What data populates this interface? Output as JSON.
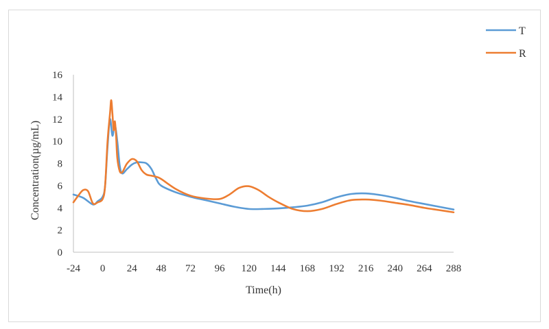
{
  "chart_data": {
    "type": "line",
    "title": "",
    "xlabel": "Time(h)",
    "ylabel": "Concentration(µg/mL)",
    "xlim": [
      -24,
      288
    ],
    "ylim": [
      0,
      16
    ],
    "xticks": [
      "-24",
      "0",
      "24",
      "48",
      "72",
      "96",
      "120",
      "144",
      "168",
      "192",
      "216",
      "240",
      "264",
      "288"
    ],
    "yticks": [
      "0",
      "2",
      "4",
      "6",
      "8",
      "10",
      "12",
      "14",
      "16"
    ],
    "grid": false,
    "legend_position": "top-right",
    "series": [
      {
        "name": "T",
        "color": "#5b9bd5",
        "x": [
          -24,
          -16,
          -8,
          -4,
          0,
          2,
          4,
          6,
          8,
          10,
          12,
          14,
          16,
          20,
          24,
          28,
          32,
          36,
          40,
          44,
          48,
          60,
          72,
          84,
          96,
          108,
          120,
          132,
          144,
          156,
          168,
          180,
          192,
          204,
          216,
          228,
          240,
          252,
          264,
          276,
          288
        ],
        "y": [
          5.2,
          4.9,
          4.3,
          4.6,
          5.0,
          6.0,
          9.5,
          12.0,
          10.5,
          11.5,
          10.0,
          7.8,
          7.1,
          7.5,
          7.9,
          8.1,
          8.1,
          8.0,
          7.5,
          6.6,
          6.0,
          5.4,
          5.0,
          4.7,
          4.4,
          4.1,
          3.9,
          3.9,
          3.95,
          4.05,
          4.2,
          4.5,
          4.95,
          5.25,
          5.3,
          5.15,
          4.9,
          4.6,
          4.35,
          4.1,
          3.85
        ]
      },
      {
        "name": "R",
        "color": "#ed7d31",
        "x": [
          -24,
          -20,
          -16,
          -12,
          -8,
          -4,
          0,
          2,
          4,
          6,
          7,
          8,
          9,
          10,
          11,
          12,
          14,
          16,
          18,
          20,
          24,
          28,
          32,
          36,
          40,
          44,
          48,
          60,
          72,
          84,
          96,
          104,
          112,
          120,
          128,
          136,
          144,
          156,
          168,
          180,
          192,
          204,
          216,
          228,
          240,
          252,
          264,
          276,
          288
        ],
        "y": [
          4.5,
          5.1,
          5.6,
          5.5,
          4.4,
          4.5,
          4.8,
          6.0,
          10.0,
          12.5,
          13.7,
          12.5,
          11.0,
          11.8,
          10.5,
          8.5,
          7.3,
          7.2,
          7.6,
          8.0,
          8.4,
          8.2,
          7.4,
          7.0,
          6.9,
          6.8,
          6.6,
          5.7,
          5.1,
          4.85,
          4.8,
          5.2,
          5.8,
          5.95,
          5.6,
          5.0,
          4.5,
          3.9,
          3.7,
          3.9,
          4.35,
          4.7,
          4.75,
          4.65,
          4.45,
          4.25,
          4.0,
          3.8,
          3.6
        ]
      }
    ]
  }
}
